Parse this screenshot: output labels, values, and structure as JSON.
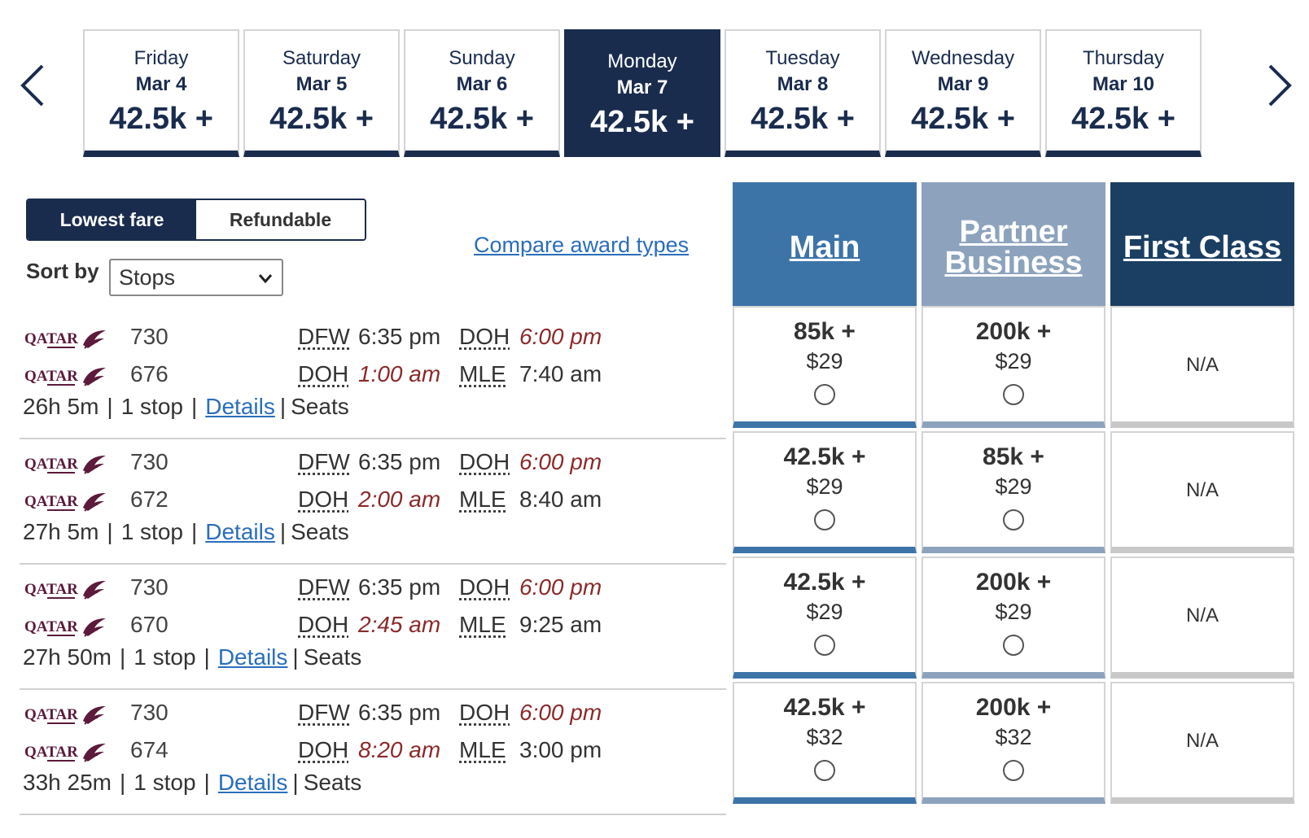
{
  "dates": [
    {
      "day": "Friday",
      "date": "Mar 4",
      "price": "42.5k +",
      "active": false
    },
    {
      "day": "Saturday",
      "date": "Mar 5",
      "price": "42.5k +",
      "active": false
    },
    {
      "day": "Sunday",
      "date": "Mar 6",
      "price": "42.5k +",
      "active": false
    },
    {
      "day": "Monday",
      "date": "Mar 7",
      "price": "42.5k +",
      "active": true
    },
    {
      "day": "Tuesday",
      "date": "Mar 8",
      "price": "42.5k +",
      "active": false
    },
    {
      "day": "Wednesday",
      "date": "Mar 9",
      "price": "42.5k +",
      "active": false
    },
    {
      "day": "Thursday",
      "date": "Mar 10",
      "price": "42.5k +",
      "active": false
    }
  ],
  "filters": {
    "lowest_fare": "Lowest fare",
    "refundable": "Refundable",
    "sort_label": "Sort by",
    "sort_value": "Stops",
    "compare_link": "Compare award types"
  },
  "cabins": {
    "main": "Main",
    "partner": "Partner Business",
    "first": "First Class"
  },
  "colors": {
    "navy": "#1a2c4e",
    "main": "#3c74a8",
    "partner": "#8da3bd",
    "first": "#1b3f63",
    "link": "#2a6ebb",
    "alt_time": "#8b2a2a"
  },
  "flights": [
    {
      "segments": [
        {
          "airline": "QATAR",
          "number": "730",
          "from": "DFW",
          "dep": "6:35 pm",
          "dep_alt": false,
          "to": "DOH",
          "arr": "6:00 pm",
          "arr_alt": true
        },
        {
          "airline": "QATAR",
          "number": "676",
          "from": "DOH",
          "dep": "1:00 am",
          "dep_alt": true,
          "to": "MLE",
          "arr": "7:40 am",
          "arr_alt": false
        }
      ],
      "duration": "26h 5m",
      "stops": "1 stop",
      "details": "Details",
      "seats": "Seats",
      "main": {
        "miles": "85k +",
        "fee": "$29"
      },
      "partner": {
        "miles": "200k +",
        "fee": "$29"
      },
      "first": "N/A"
    },
    {
      "segments": [
        {
          "airline": "QATAR",
          "number": "730",
          "from": "DFW",
          "dep": "6:35 pm",
          "dep_alt": false,
          "to": "DOH",
          "arr": "6:00 pm",
          "arr_alt": true
        },
        {
          "airline": "QATAR",
          "number": "672",
          "from": "DOH",
          "dep": "2:00 am",
          "dep_alt": true,
          "to": "MLE",
          "arr": "8:40 am",
          "arr_alt": false
        }
      ],
      "duration": "27h 5m",
      "stops": "1 stop",
      "details": "Details",
      "seats": "Seats",
      "main": {
        "miles": "42.5k +",
        "fee": "$29"
      },
      "partner": {
        "miles": "85k +",
        "fee": "$29"
      },
      "first": "N/A"
    },
    {
      "segments": [
        {
          "airline": "QATAR",
          "number": "730",
          "from": "DFW",
          "dep": "6:35 pm",
          "dep_alt": false,
          "to": "DOH",
          "arr": "6:00 pm",
          "arr_alt": true
        },
        {
          "airline": "QATAR",
          "number": "670",
          "from": "DOH",
          "dep": "2:45 am",
          "dep_alt": true,
          "to": "MLE",
          "arr": "9:25 am",
          "arr_alt": false
        }
      ],
      "duration": "27h 50m",
      "stops": "1 stop",
      "details": "Details",
      "seats": "Seats",
      "main": {
        "miles": "42.5k +",
        "fee": "$29"
      },
      "partner": {
        "miles": "200k +",
        "fee": "$29"
      },
      "first": "N/A"
    },
    {
      "segments": [
        {
          "airline": "QATAR",
          "number": "730",
          "from": "DFW",
          "dep": "6:35 pm",
          "dep_alt": false,
          "to": "DOH",
          "arr": "6:00 pm",
          "arr_alt": true
        },
        {
          "airline": "QATAR",
          "number": "674",
          "from": "DOH",
          "dep": "8:20 am",
          "dep_alt": true,
          "to": "MLE",
          "arr": "3:00 pm",
          "arr_alt": false
        }
      ],
      "duration": "33h 25m",
      "stops": "1 stop",
      "details": "Details",
      "seats": "Seats",
      "main": {
        "miles": "42.5k +",
        "fee": "$32"
      },
      "partner": {
        "miles": "200k +",
        "fee": "$32"
      },
      "first": "N/A"
    }
  ]
}
